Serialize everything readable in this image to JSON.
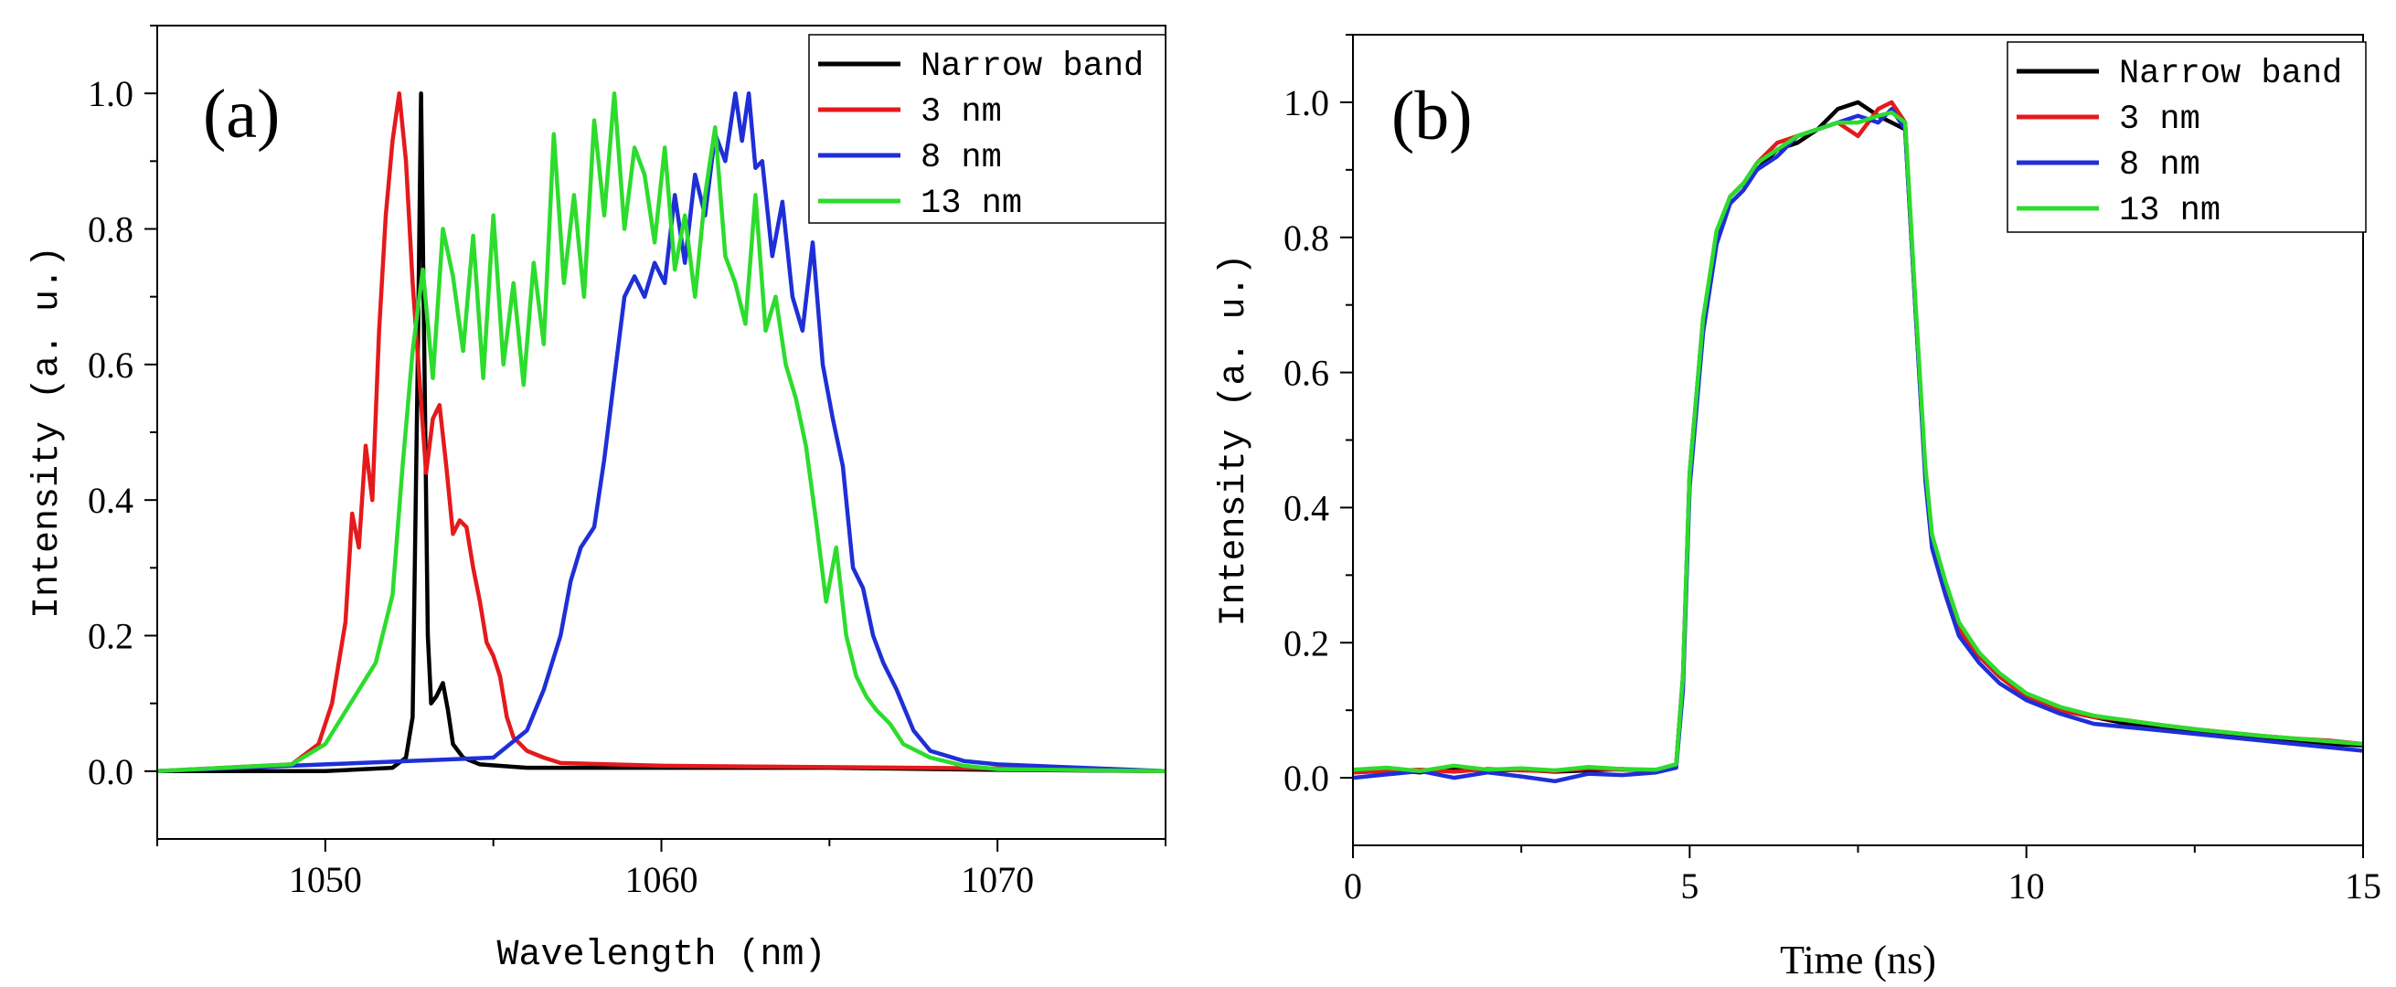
{
  "chart_data": [
    {
      "type": "line",
      "panel_label": "(a)",
      "xlabel": "Wavelength (nm)",
      "ylabel": "Intensity (a. u.)",
      "xlim": [
        1045,
        1075
      ],
      "ylim": [
        -0.1,
        1.1
      ],
      "xticks": [
        1050,
        1060,
        1070
      ],
      "xtick_labels": [
        "1050",
        "1060",
        "1070"
      ],
      "yticks": [
        0.0,
        0.2,
        0.4,
        0.6,
        0.8,
        1.0
      ],
      "ytick_labels": [
        "0.0",
        "0.2",
        "0.4",
        "0.6",
        "0.8",
        "1.0"
      ],
      "grid": false,
      "legend_position": "top-right",
      "series": [
        {
          "name": "Narrow band",
          "color": "#000000",
          "x": [
            1045,
            1050,
            1052.0,
            1052.4,
            1052.6,
            1052.75,
            1052.85,
            1052.95,
            1053.05,
            1053.15,
            1053.3,
            1053.5,
            1053.65,
            1053.8,
            1054.1,
            1054.6,
            1056,
            1060,
            1065,
            1070,
            1075
          ],
          "y": [
            0.0,
            0.0,
            0.005,
            0.02,
            0.08,
            0.6,
            1.0,
            0.6,
            0.2,
            0.1,
            0.11,
            0.13,
            0.09,
            0.04,
            0.02,
            0.01,
            0.005,
            0.005,
            0.005,
            0.002,
            0.0
          ]
        },
        {
          "name": "3 nm",
          "color": "#e41a1c",
          "x": [
            1045,
            1049,
            1049.8,
            1050.2,
            1050.6,
            1050.8,
            1051.0,
            1051.2,
            1051.4,
            1051.6,
            1051.8,
            1052.0,
            1052.2,
            1052.4,
            1052.6,
            1052.8,
            1053.0,
            1053.2,
            1053.4,
            1053.6,
            1053.8,
            1054.0,
            1054.2,
            1054.4,
            1054.6,
            1054.8,
            1055.0,
            1055.2,
            1055.4,
            1055.6,
            1056.0,
            1056.5,
            1057,
            1060,
            1065,
            1070,
            1075
          ],
          "y": [
            0.0,
            0.01,
            0.04,
            0.1,
            0.22,
            0.38,
            0.33,
            0.48,
            0.4,
            0.65,
            0.82,
            0.93,
            1.0,
            0.9,
            0.72,
            0.58,
            0.44,
            0.52,
            0.54,
            0.45,
            0.35,
            0.37,
            0.36,
            0.3,
            0.25,
            0.19,
            0.17,
            0.14,
            0.08,
            0.05,
            0.03,
            0.02,
            0.012,
            0.008,
            0.006,
            0.004,
            0.0
          ]
        },
        {
          "name": "8 nm",
          "color": "#1f2fd6",
          "x": [
            1045,
            1050,
            1055,
            1056.0,
            1056.5,
            1057.0,
            1057.3,
            1057.6,
            1058.0,
            1058.3,
            1058.6,
            1058.9,
            1059.2,
            1059.5,
            1059.8,
            1060.1,
            1060.4,
            1060.7,
            1061.0,
            1061.3,
            1061.6,
            1061.9,
            1062.2,
            1062.4,
            1062.6,
            1062.8,
            1063.0,
            1063.3,
            1063.6,
            1063.9,
            1064.2,
            1064.5,
            1064.8,
            1065.1,
            1065.4,
            1065.7,
            1066.0,
            1066.3,
            1066.6,
            1067.0,
            1067.5,
            1068,
            1069,
            1070,
            1075
          ],
          "y": [
            0.0,
            0.01,
            0.02,
            0.06,
            0.12,
            0.2,
            0.28,
            0.33,
            0.36,
            0.46,
            0.58,
            0.7,
            0.73,
            0.7,
            0.75,
            0.72,
            0.85,
            0.75,
            0.88,
            0.82,
            0.94,
            0.9,
            1.0,
            0.93,
            1.0,
            0.89,
            0.9,
            0.76,
            0.84,
            0.7,
            0.65,
            0.78,
            0.6,
            0.52,
            0.45,
            0.3,
            0.27,
            0.2,
            0.16,
            0.12,
            0.06,
            0.03,
            0.015,
            0.01,
            0.0
          ]
        },
        {
          "name": "13 nm",
          "color": "#2ddc2d",
          "x": [
            1045,
            1049,
            1050.0,
            1050.5,
            1051.0,
            1051.5,
            1052.0,
            1052.3,
            1052.6,
            1052.9,
            1053.2,
            1053.5,
            1053.8,
            1054.1,
            1054.4,
            1054.7,
            1055.0,
            1055.3,
            1055.6,
            1055.9,
            1056.2,
            1056.5,
            1056.8,
            1057.1,
            1057.4,
            1057.7,
            1058.0,
            1058.3,
            1058.6,
            1058.9,
            1059.2,
            1059.5,
            1059.8,
            1060.1,
            1060.4,
            1060.7,
            1061.0,
            1061.3,
            1061.6,
            1061.9,
            1062.2,
            1062.5,
            1062.8,
            1063.1,
            1063.4,
            1063.7,
            1064.0,
            1064.3,
            1064.6,
            1064.9,
            1065.2,
            1065.5,
            1065.8,
            1066.1,
            1066.4,
            1066.8,
            1067.2,
            1067.6,
            1068,
            1069,
            1070,
            1075
          ],
          "y": [
            0.0,
            0.01,
            0.04,
            0.08,
            0.12,
            0.16,
            0.26,
            0.45,
            0.62,
            0.74,
            0.58,
            0.8,
            0.73,
            0.62,
            0.79,
            0.58,
            0.82,
            0.6,
            0.72,
            0.57,
            0.75,
            0.63,
            0.94,
            0.72,
            0.85,
            0.7,
            0.96,
            0.82,
            1.0,
            0.8,
            0.92,
            0.88,
            0.78,
            0.92,
            0.74,
            0.82,
            0.7,
            0.85,
            0.95,
            0.76,
            0.72,
            0.66,
            0.85,
            0.65,
            0.7,
            0.6,
            0.55,
            0.48,
            0.37,
            0.25,
            0.33,
            0.2,
            0.14,
            0.11,
            0.09,
            0.07,
            0.04,
            0.03,
            0.02,
            0.008,
            0.003,
            0.0
          ]
        }
      ]
    },
    {
      "type": "line",
      "panel_label": "(b)",
      "xlabel": "Time (ns)",
      "ylabel": "Intensity (a. u.)",
      "xlim": [
        0,
        15
      ],
      "ylim": [
        -0.1,
        1.1
      ],
      "xticks": [
        0,
        5,
        10,
        15
      ],
      "xtick_labels": [
        "0",
        "5",
        "10",
        "15"
      ],
      "yticks": [
        0.0,
        0.2,
        0.4,
        0.6,
        0.8,
        1.0
      ],
      "ytick_labels": [
        "0.0",
        "0.2",
        "0.4",
        "0.6",
        "0.8",
        "1.0"
      ],
      "grid": false,
      "legend_position": "top-right",
      "series": [
        {
          "name": "Narrow band",
          "color": "#000000",
          "x": [
            0,
            0.5,
            1.0,
            1.5,
            2.0,
            2.5,
            3.0,
            3.5,
            4.0,
            4.5,
            4.8,
            4.9,
            5.0,
            5.2,
            5.4,
            5.6,
            5.8,
            6.0,
            6.3,
            6.6,
            6.9,
            7.2,
            7.5,
            7.8,
            8.0,
            8.2,
            8.35,
            8.5,
            8.6,
            8.8,
            9.0,
            9.3,
            9.6,
            10.0,
            10.5,
            11.0,
            11.5,
            12.0,
            12.5,
            13.0,
            13.5,
            14.0,
            14.5,
            15.0
          ],
          "y": [
            0.01,
            0.012,
            0.008,
            0.015,
            0.01,
            0.012,
            0.009,
            0.011,
            0.013,
            0.01,
            0.02,
            0.15,
            0.45,
            0.68,
            0.8,
            0.86,
            0.88,
            0.9,
            0.93,
            0.94,
            0.96,
            0.99,
            1.0,
            0.98,
            0.97,
            0.96,
            0.7,
            0.45,
            0.35,
            0.28,
            0.22,
            0.18,
            0.15,
            0.12,
            0.1,
            0.09,
            0.08,
            0.075,
            0.07,
            0.065,
            0.06,
            0.055,
            0.05,
            0.048
          ]
        },
        {
          "name": "3 nm",
          "color": "#e41a1c",
          "x": [
            0,
            0.5,
            1.0,
            1.5,
            2.0,
            2.5,
            3.0,
            3.5,
            4.0,
            4.5,
            4.8,
            4.9,
            5.0,
            5.2,
            5.4,
            5.6,
            5.8,
            6.0,
            6.3,
            6.6,
            6.9,
            7.2,
            7.5,
            7.8,
            8.0,
            8.2,
            8.35,
            8.5,
            8.6,
            8.8,
            9.0,
            9.3,
            9.6,
            10.0,
            10.5,
            11.0,
            11.5,
            12.0,
            12.5,
            13.0,
            13.5,
            14.0,
            14.5,
            15.0
          ],
          "y": [
            0.008,
            0.01,
            0.012,
            0.009,
            0.013,
            0.011,
            0.01,
            0.014,
            0.012,
            0.011,
            0.02,
            0.14,
            0.44,
            0.67,
            0.8,
            0.86,
            0.88,
            0.91,
            0.94,
            0.95,
            0.96,
            0.97,
            0.95,
            0.99,
            1.0,
            0.97,
            0.7,
            0.45,
            0.35,
            0.28,
            0.22,
            0.18,
            0.15,
            0.12,
            0.1,
            0.09,
            0.085,
            0.078,
            0.072,
            0.067,
            0.062,
            0.058,
            0.055,
            0.05
          ]
        },
        {
          "name": "8 nm",
          "color": "#1f2fd6",
          "x": [
            0,
            0.5,
            1.0,
            1.5,
            2.0,
            2.5,
            3.0,
            3.5,
            4.0,
            4.5,
            4.8,
            4.9,
            5.0,
            5.2,
            5.4,
            5.6,
            5.8,
            6.0,
            6.3,
            6.6,
            6.9,
            7.2,
            7.5,
            7.8,
            8.0,
            8.2,
            8.35,
            8.5,
            8.6,
            8.8,
            9.0,
            9.3,
            9.6,
            10.0,
            10.5,
            11.0,
            11.5,
            12.0,
            12.5,
            13.0,
            13.5,
            14.0,
            14.5,
            15.0
          ],
          "y": [
            0.0,
            0.005,
            0.01,
            0.0,
            0.008,
            0.002,
            -0.005,
            0.006,
            0.004,
            0.008,
            0.015,
            0.13,
            0.43,
            0.66,
            0.79,
            0.85,
            0.87,
            0.9,
            0.92,
            0.95,
            0.96,
            0.97,
            0.98,
            0.97,
            0.99,
            0.96,
            0.7,
            0.44,
            0.34,
            0.27,
            0.21,
            0.17,
            0.14,
            0.115,
            0.095,
            0.08,
            0.075,
            0.07,
            0.065,
            0.06,
            0.055,
            0.05,
            0.045,
            0.04
          ]
        },
        {
          "name": "13 nm",
          "color": "#2ddc2d",
          "x": [
            0,
            0.5,
            1.0,
            1.5,
            2.0,
            2.5,
            3.0,
            3.5,
            4.0,
            4.5,
            4.8,
            4.9,
            5.0,
            5.2,
            5.4,
            5.6,
            5.8,
            6.0,
            6.3,
            6.6,
            6.9,
            7.2,
            7.5,
            7.8,
            8.0,
            8.2,
            8.35,
            8.5,
            8.6,
            8.8,
            9.0,
            9.3,
            9.6,
            10.0,
            10.5,
            11.0,
            11.5,
            12.0,
            12.5,
            13.0,
            13.5,
            14.0,
            14.5,
            15.0
          ],
          "y": [
            0.012,
            0.015,
            0.01,
            0.018,
            0.012,
            0.014,
            0.011,
            0.016,
            0.013,
            0.012,
            0.02,
            0.15,
            0.45,
            0.68,
            0.81,
            0.86,
            0.88,
            0.91,
            0.93,
            0.95,
            0.96,
            0.97,
            0.97,
            0.98,
            0.985,
            0.97,
            0.71,
            0.46,
            0.36,
            0.29,
            0.23,
            0.185,
            0.155,
            0.125,
            0.105,
            0.092,
            0.085,
            0.078,
            0.072,
            0.067,
            0.062,
            0.058,
            0.054,
            0.05
          ]
        }
      ]
    }
  ]
}
